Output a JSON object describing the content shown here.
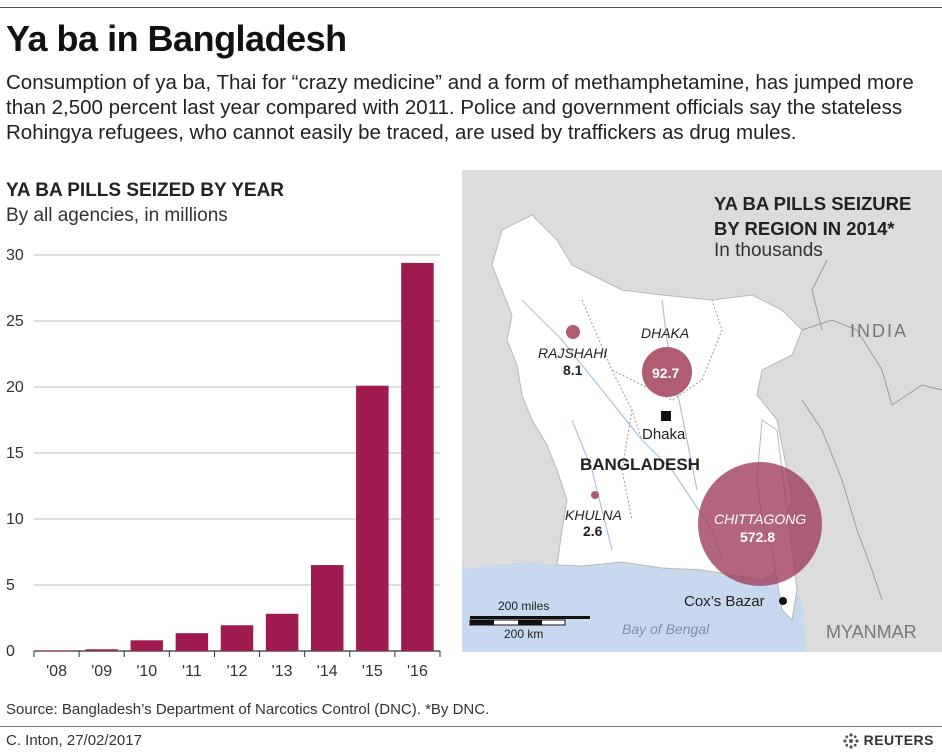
{
  "header": {
    "title": "Ya ba in Bangladesh",
    "intro": "Consumption of ya ba, Thai for “crazy medicine” and a form of methamphetamine, has jumped more than 2,500 percent last year compared with 2011. Police and government officials say the stateless Rohingya refugees, who cannot easily be traced, are used by traffickers as drug mules."
  },
  "chart_data": [
    {
      "type": "bar",
      "title": "YA BA PILLS SEIZED BY YEAR",
      "subtitle": "By all agencies, in millions",
      "categories": [
        "'08",
        "'09",
        "'10",
        "'11",
        "'12",
        "'13",
        "'14",
        "'15",
        "'16"
      ],
      "values": [
        0.04,
        0.13,
        0.81,
        1.35,
        1.95,
        2.82,
        6.51,
        20.1,
        29.4
      ],
      "yticks": [
        0,
        5,
        10,
        15,
        20,
        25,
        30
      ],
      "ylim": [
        0,
        30
      ],
      "grid": true,
      "color": "#9e1a4f"
    },
    {
      "type": "bubble-map",
      "title": "YA BA PILLS SEIZURE BY REGION IN 2014*",
      "subtitle": "In thousands",
      "regions": [
        {
          "label": "RAJSHAHI",
          "value": 8.1,
          "value_label": "8.1"
        },
        {
          "label": "DHAKA",
          "value": 92.7,
          "value_label": "92.7"
        },
        {
          "label": "KHULNA",
          "value": 2.6,
          "value_label": "2.6"
        },
        {
          "label": "CHITTAGONG",
          "value": 572.8,
          "value_label": "572.8"
        }
      ],
      "color": "#b05d74"
    }
  ],
  "map": {
    "country_label": "BANGLADESH",
    "capital_label": "Dhaka",
    "city_label": "Cox’s Bazar",
    "india_label": "INDIA",
    "myanmar_label": "MYANMAR",
    "sea_label": "Bay of Bengal",
    "scale_miles": "200 miles",
    "scale_km": "200 km"
  },
  "footer": {
    "source": "Source: Bangladesh’s Department of Narcotics Control (DNC). *By DNC.",
    "credit": "C. Inton, 27/02/2017",
    "brand": "REUTERS"
  }
}
